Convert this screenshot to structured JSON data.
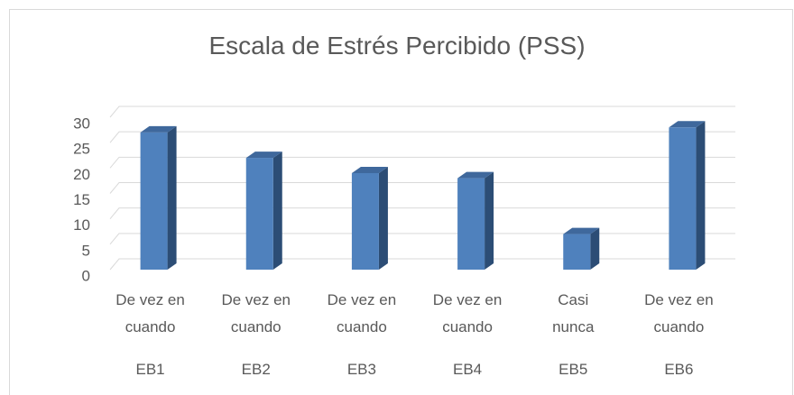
{
  "chart_data": {
    "type": "bar3d",
    "title": "Escala de Estrés Percibido (PSS)",
    "categories": [
      "EB1",
      "EB2",
      "EB3",
      "EB4",
      "EB5",
      "EB6"
    ],
    "responses": [
      "De vez en cuando",
      "De vez en cuando",
      "De vez en cuando",
      "De vez en cuando",
      "Casi nunca",
      "De vez en cuando"
    ],
    "values": [
      27,
      22,
      19,
      18,
      7,
      28
    ],
    "color": "#4f81bd",
    "ylim": [
      0,
      30
    ],
    "yticks": [
      0,
      5,
      10,
      15,
      20,
      25,
      30
    ],
    "grid": true
  }
}
